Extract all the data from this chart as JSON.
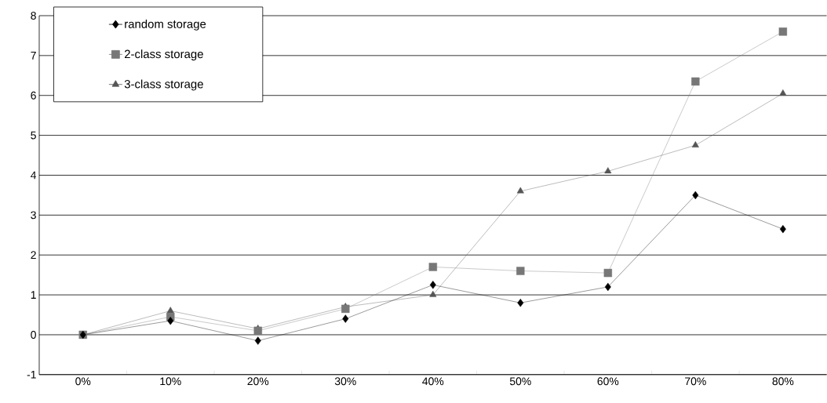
{
  "chart_data": {
    "type": "line",
    "categories": [
      "0%",
      "10%",
      "20%",
      "30%",
      "40%",
      "50%",
      "60%",
      "70%",
      "80%"
    ],
    "series": [
      {
        "name": "random storage",
        "color": "#000000",
        "marker": "diamond",
        "values": [
          0,
          0.35,
          -0.15,
          0.4,
          1.25,
          0.8,
          1.2,
          3.5,
          2.65
        ]
      },
      {
        "name": "2-class storage",
        "color": "#777777",
        "marker": "square",
        "values": [
          0,
          0.45,
          0.1,
          0.65,
          1.7,
          1.6,
          1.55,
          6.35,
          7.6
        ]
      },
      {
        "name": "3-class storage",
        "color": "#555555",
        "marker": "triangle",
        "values": [
          0,
          0.6,
          0.15,
          0.7,
          1.0,
          3.6,
          4.1,
          4.75,
          6.05
        ]
      }
    ],
    "ylim": [
      -1,
      8
    ],
    "yticks": [
      -1,
      0,
      1,
      2,
      3,
      4,
      5,
      6,
      7,
      8
    ],
    "grid": "y",
    "legend": "top left",
    "line_style": "solid"
  }
}
